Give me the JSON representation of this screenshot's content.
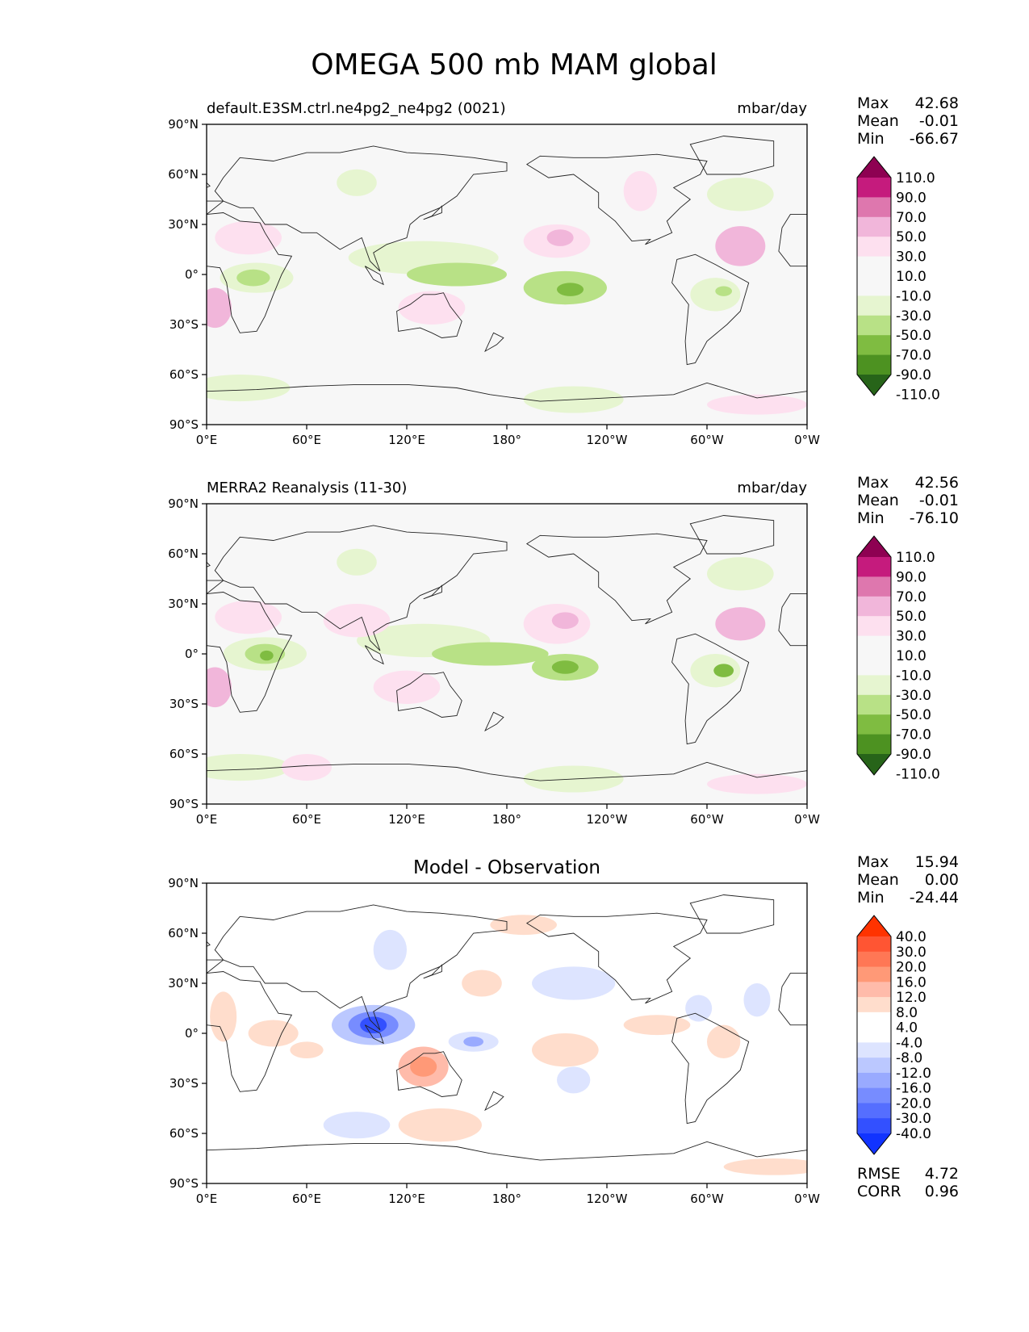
{
  "figure": {
    "title": "OMEGA 500 mb MAM global"
  },
  "axes": {
    "lat_ticks": [
      "90°N",
      "60°N",
      "30°N",
      "0°",
      "30°S",
      "60°S",
      "90°S"
    ],
    "lon_ticks": [
      "0°E",
      "60°E",
      "120°E",
      "180°",
      "120°W",
      "60°W",
      "0°W"
    ]
  },
  "panels": [
    {
      "id": "model",
      "title_left": "default.E3SM.ctrl.ne4pg2_ne4pg2 (0021)",
      "title_center": "",
      "title_right": "mbar/day",
      "stats": [
        {
          "label": "Max",
          "value": "42.68"
        },
        {
          "label": "Mean",
          "value": "-0.01"
        },
        {
          "label": "Min",
          "value": "-66.67"
        }
      ],
      "footer_stats": [],
      "colorbar": {
        "labels": [
          "110.0",
          "90.0",
          "70.0",
          "50.0",
          "30.0",
          "10.0",
          "-10.0",
          "-30.0",
          "-50.0",
          "-70.0",
          "-90.0",
          "-110.0"
        ],
        "colors": [
          "#8e0152",
          "#c51b7d",
          "#de77ae",
          "#f1b6da",
          "#fde0ef",
          "#f7f7f7",
          "#f7f7f7",
          "#e6f5d0",
          "#b8e186",
          "#7fbc41",
          "#4d9221",
          "#276419"
        ]
      },
      "background": "#f7f7f7",
      "blobs": [
        {
          "lon": 130,
          "lat": 10,
          "rx": 45,
          "ry": 10,
          "color": "#e6f5d0"
        },
        {
          "lon": 150,
          "lat": 0,
          "rx": 30,
          "ry": 7,
          "color": "#b8e186"
        },
        {
          "lon": 215,
          "lat": -8,
          "rx": 25,
          "ry": 10,
          "color": "#b8e186"
        },
        {
          "lon": 218,
          "lat": -9,
          "rx": 8,
          "ry": 4,
          "color": "#7fbc41"
        },
        {
          "lon": 30,
          "lat": -2,
          "rx": 22,
          "ry": 9,
          "color": "#e6f5d0"
        },
        {
          "lon": 28,
          "lat": -2,
          "rx": 10,
          "ry": 5,
          "color": "#b8e186"
        },
        {
          "lon": 305,
          "lat": -12,
          "rx": 15,
          "ry": 10,
          "color": "#e6f5d0"
        },
        {
          "lon": 310,
          "lat": -10,
          "rx": 5,
          "ry": 3,
          "color": "#b8e186"
        },
        {
          "lon": 25,
          "lat": 22,
          "rx": 20,
          "ry": 10,
          "color": "#fde0ef"
        },
        {
          "lon": 5,
          "lat": -20,
          "rx": 10,
          "ry": 12,
          "color": "#f1b6da"
        },
        {
          "lon": 210,
          "lat": 20,
          "rx": 20,
          "ry": 10,
          "color": "#fde0ef"
        },
        {
          "lon": 212,
          "lat": 22,
          "rx": 8,
          "ry": 5,
          "color": "#f1b6da"
        },
        {
          "lon": 320,
          "lat": 17,
          "rx": 15,
          "ry": 12,
          "color": "#f1b6da"
        },
        {
          "lon": 135,
          "lat": -20,
          "rx": 20,
          "ry": 10,
          "color": "#fde0ef"
        },
        {
          "lon": 90,
          "lat": 55,
          "rx": 12,
          "ry": 8,
          "color": "#e6f5d0"
        },
        {
          "lon": 320,
          "lat": 48,
          "rx": 20,
          "ry": 10,
          "color": "#e6f5d0"
        },
        {
          "lon": 20,
          "lat": -68,
          "rx": 30,
          "ry": 8,
          "color": "#e6f5d0"
        },
        {
          "lon": 220,
          "lat": -75,
          "rx": 30,
          "ry": 8,
          "color": "#e6f5d0"
        },
        {
          "lon": 330,
          "lat": -78,
          "rx": 30,
          "ry": 6,
          "color": "#fde0ef"
        },
        {
          "lon": 260,
          "lat": 50,
          "rx": 10,
          "ry": 12,
          "color": "#fde0ef"
        }
      ]
    },
    {
      "id": "obs",
      "title_left": "MERRA2 Reanalysis (11-30)",
      "title_center": "",
      "title_right": "mbar/day",
      "stats": [
        {
          "label": "Max",
          "value": "42.56"
        },
        {
          "label": "Mean",
          "value": "-0.01"
        },
        {
          "label": "Min",
          "value": "-76.10"
        }
      ],
      "footer_stats": [],
      "colorbar": {
        "labels": [
          "110.0",
          "90.0",
          "70.0",
          "50.0",
          "30.0",
          "10.0",
          "-10.0",
          "-30.0",
          "-50.0",
          "-70.0",
          "-90.0",
          "-110.0"
        ],
        "colors": [
          "#8e0152",
          "#c51b7d",
          "#de77ae",
          "#f1b6da",
          "#fde0ef",
          "#f7f7f7",
          "#f7f7f7",
          "#e6f5d0",
          "#b8e186",
          "#7fbc41",
          "#4d9221",
          "#276419"
        ]
      },
      "background": "#f7f7f7",
      "blobs": [
        {
          "lon": 130,
          "lat": 8,
          "rx": 40,
          "ry": 10,
          "color": "#e6f5d0"
        },
        {
          "lon": 170,
          "lat": 0,
          "rx": 35,
          "ry": 7,
          "color": "#b8e186"
        },
        {
          "lon": 215,
          "lat": -8,
          "rx": 20,
          "ry": 8,
          "color": "#b8e186"
        },
        {
          "lon": 215,
          "lat": -8,
          "rx": 8,
          "ry": 4,
          "color": "#7fbc41"
        },
        {
          "lon": 35,
          "lat": 0,
          "rx": 25,
          "ry": 10,
          "color": "#e6f5d0"
        },
        {
          "lon": 35,
          "lat": 0,
          "rx": 12,
          "ry": 6,
          "color": "#b8e186"
        },
        {
          "lon": 36,
          "lat": -1,
          "rx": 4,
          "ry": 3,
          "color": "#7fbc41"
        },
        {
          "lon": 305,
          "lat": -10,
          "rx": 15,
          "ry": 10,
          "color": "#e6f5d0"
        },
        {
          "lon": 310,
          "lat": -10,
          "rx": 6,
          "ry": 4,
          "color": "#7fbc41"
        },
        {
          "lon": 25,
          "lat": 22,
          "rx": 20,
          "ry": 10,
          "color": "#fde0ef"
        },
        {
          "lon": 5,
          "lat": -20,
          "rx": 10,
          "ry": 12,
          "color": "#f1b6da"
        },
        {
          "lon": 210,
          "lat": 18,
          "rx": 20,
          "ry": 12,
          "color": "#fde0ef"
        },
        {
          "lon": 215,
          "lat": 20,
          "rx": 8,
          "ry": 5,
          "color": "#f1b6da"
        },
        {
          "lon": 320,
          "lat": 18,
          "rx": 15,
          "ry": 10,
          "color": "#f1b6da"
        },
        {
          "lon": 90,
          "lat": 20,
          "rx": 20,
          "ry": 10,
          "color": "#fde0ef"
        },
        {
          "lon": 120,
          "lat": -20,
          "rx": 20,
          "ry": 10,
          "color": "#fde0ef"
        },
        {
          "lon": 90,
          "lat": 55,
          "rx": 12,
          "ry": 8,
          "color": "#e6f5d0"
        },
        {
          "lon": 320,
          "lat": 48,
          "rx": 20,
          "ry": 10,
          "color": "#e6f5d0"
        },
        {
          "lon": 20,
          "lat": -68,
          "rx": 30,
          "ry": 8,
          "color": "#e6f5d0"
        },
        {
          "lon": 220,
          "lat": -75,
          "rx": 30,
          "ry": 8,
          "color": "#e6f5d0"
        },
        {
          "lon": 330,
          "lat": -78,
          "rx": 30,
          "ry": 6,
          "color": "#fde0ef"
        },
        {
          "lon": 60,
          "lat": -68,
          "rx": 15,
          "ry": 8,
          "color": "#fde0ef"
        }
      ]
    },
    {
      "id": "diff",
      "title_left": "",
      "title_center": "Model - Observation",
      "title_right": "",
      "stats": [
        {
          "label": "Max",
          "value": "15.94"
        },
        {
          "label": "Mean",
          "value": "0.00"
        },
        {
          "label": "Min",
          "value": "-24.44"
        }
      ],
      "footer_stats": [
        {
          "label": "RMSE",
          "value": "4.72"
        },
        {
          "label": "CORR",
          "value": "0.96"
        }
      ],
      "colorbar": {
        "labels": [
          "40.0",
          "30.0",
          "20.0",
          "16.0",
          "12.0",
          "8.0",
          "4.0",
          "-4.0",
          "-8.0",
          "-12.0",
          "-16.0",
          "-20.0",
          "-30.0",
          "-40.0"
        ],
        "colors": [
          "#ff3300",
          "#ff5533",
          "#ff7755",
          "#ff9977",
          "#ffbbaa",
          "#ffddcc",
          "#ffffff",
          "#ffffff",
          "#dde4ff",
          "#bbc8ff",
          "#99aaff",
          "#778cff",
          "#556eff",
          "#3350ff",
          "#1133ff"
        ]
      },
      "background": "#ffffff",
      "blobs": [
        {
          "lon": 100,
          "lat": 5,
          "rx": 25,
          "ry": 12,
          "color": "#bbc8ff"
        },
        {
          "lon": 100,
          "lat": 5,
          "rx": 15,
          "ry": 8,
          "color": "#778cff"
        },
        {
          "lon": 100,
          "lat": 5,
          "rx": 8,
          "ry": 5,
          "color": "#3350ff"
        },
        {
          "lon": 130,
          "lat": -20,
          "rx": 15,
          "ry": 12,
          "color": "#ffbbaa"
        },
        {
          "lon": 130,
          "lat": -20,
          "rx": 8,
          "ry": 6,
          "color": "#ff9977"
        },
        {
          "lon": 140,
          "lat": -55,
          "rx": 25,
          "ry": 10,
          "color": "#ffddcc"
        },
        {
          "lon": 90,
          "lat": -55,
          "rx": 20,
          "ry": 8,
          "color": "#dde4ff"
        },
        {
          "lon": 215,
          "lat": -10,
          "rx": 20,
          "ry": 10,
          "color": "#ffddcc"
        },
        {
          "lon": 160,
          "lat": -5,
          "rx": 15,
          "ry": 6,
          "color": "#dde4ff"
        },
        {
          "lon": 160,
          "lat": -5,
          "rx": 6,
          "ry": 3,
          "color": "#99aaff"
        },
        {
          "lon": 220,
          "lat": 30,
          "rx": 25,
          "ry": 10,
          "color": "#dde4ff"
        },
        {
          "lon": 220,
          "lat": -28,
          "rx": 10,
          "ry": 8,
          "color": "#dde4ff"
        },
        {
          "lon": 40,
          "lat": 0,
          "rx": 15,
          "ry": 8,
          "color": "#ffddcc"
        },
        {
          "lon": 60,
          "lat": -10,
          "rx": 10,
          "ry": 5,
          "color": "#ffddcc"
        },
        {
          "lon": 310,
          "lat": -5,
          "rx": 10,
          "ry": 10,
          "color": "#ffddcc"
        },
        {
          "lon": 295,
          "lat": 15,
          "rx": 8,
          "ry": 8,
          "color": "#dde4ff"
        },
        {
          "lon": 270,
          "lat": 5,
          "rx": 20,
          "ry": 6,
          "color": "#ffddcc"
        },
        {
          "lon": 110,
          "lat": 50,
          "rx": 10,
          "ry": 12,
          "color": "#dde4ff"
        },
        {
          "lon": 165,
          "lat": 30,
          "rx": 12,
          "ry": 8,
          "color": "#ffddcc"
        },
        {
          "lon": 190,
          "lat": 65,
          "rx": 20,
          "ry": 6,
          "color": "#ffddcc"
        },
        {
          "lon": 340,
          "lat": -80,
          "rx": 30,
          "ry": 5,
          "color": "#ffddcc"
        },
        {
          "lon": 330,
          "lat": 20,
          "rx": 8,
          "ry": 10,
          "color": "#dde4ff"
        },
        {
          "lon": 10,
          "lat": 10,
          "rx": 8,
          "ry": 15,
          "color": "#ffddcc"
        }
      ]
    }
  ]
}
